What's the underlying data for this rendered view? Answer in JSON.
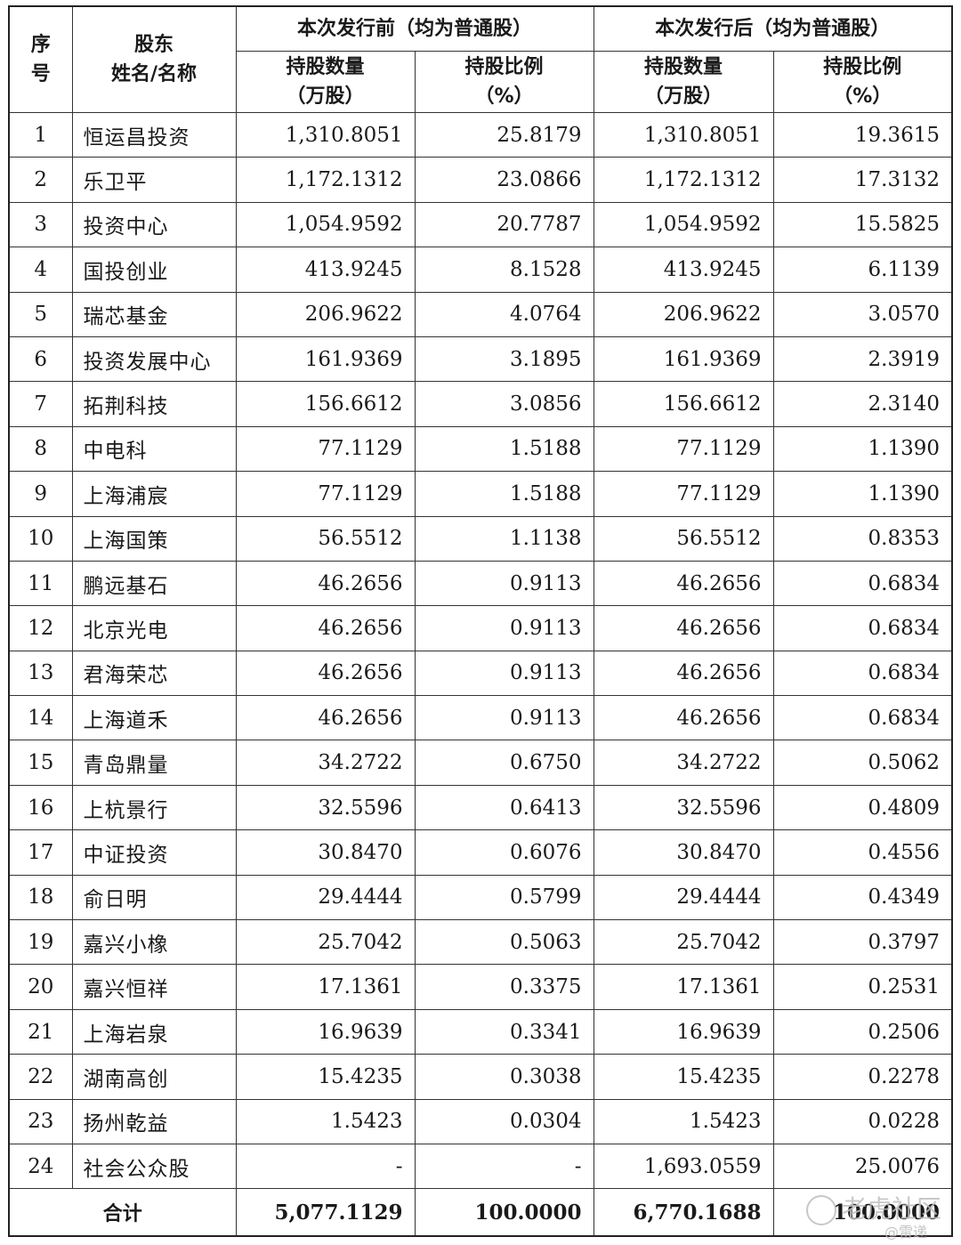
{
  "header": {
    "seq": "序\n号",
    "shareholder": "股东\n姓名/名称",
    "before_group": "本次发行前（均为普通股）",
    "after_group": "本次发行后（均为普通股）",
    "shares_label": "持股数量\n（万股）",
    "ratio_label": "持股比例\n（%）"
  },
  "rows": [
    [
      "1",
      "恒运昌投资",
      "1,310.8051",
      "25.8179",
      "1,310.8051",
      "19.3615"
    ],
    [
      "2",
      "乐卫平",
      "1,172.1312",
      "23.0866",
      "1,172.1312",
      "17.3132"
    ],
    [
      "3",
      "投资中心",
      "1,054.9592",
      "20.7787",
      "1,054.9592",
      "15.5825"
    ],
    [
      "4",
      "国投创业",
      "413.9245",
      "8.1528",
      "413.9245",
      "6.1139"
    ],
    [
      "5",
      "瑞芯基金",
      "206.9622",
      "4.0764",
      "206.9622",
      "3.0570"
    ],
    [
      "6",
      "投资发展中心",
      "161.9369",
      "3.1895",
      "161.9369",
      "2.3919"
    ],
    [
      "7",
      "拓荆科技",
      "156.6612",
      "3.0856",
      "156.6612",
      "2.3140"
    ],
    [
      "8",
      "中电科",
      "77.1129",
      "1.5188",
      "77.1129",
      "1.1390"
    ],
    [
      "9",
      "上海浦宸",
      "77.1129",
      "1.5188",
      "77.1129",
      "1.1390"
    ],
    [
      "10",
      "上海国策",
      "56.5512",
      "1.1138",
      "56.5512",
      "0.8353"
    ],
    [
      "11",
      "鹏远基石",
      "46.2656",
      "0.9113",
      "46.2656",
      "0.6834"
    ],
    [
      "12",
      "北京光电",
      "46.2656",
      "0.9113",
      "46.2656",
      "0.6834"
    ],
    [
      "13",
      "君海荣芯",
      "46.2656",
      "0.9113",
      "46.2656",
      "0.6834"
    ],
    [
      "14",
      "上海道禾",
      "46.2656",
      "0.9113",
      "46.2656",
      "0.6834"
    ],
    [
      "15",
      "青岛鼎量",
      "34.2722",
      "0.6750",
      "34.2722",
      "0.5062"
    ],
    [
      "16",
      "上杭景行",
      "32.5596",
      "0.6413",
      "32.5596",
      "0.4809"
    ],
    [
      "17",
      "中证投资",
      "30.8470",
      "0.6076",
      "30.8470",
      "0.4556"
    ],
    [
      "18",
      "俞日明",
      "29.4444",
      "0.5799",
      "29.4444",
      "0.4349"
    ],
    [
      "19",
      "嘉兴小橡",
      "25.7042",
      "0.5063",
      "25.7042",
      "0.3797"
    ],
    [
      "20",
      "嘉兴恒祥",
      "17.1361",
      "0.3375",
      "17.1361",
      "0.2531"
    ],
    [
      "21",
      "上海岩泉",
      "16.9639",
      "0.3341",
      "16.9639",
      "0.2506"
    ],
    [
      "22",
      "湖南高创",
      "15.4235",
      "0.3038",
      "15.4235",
      "0.2278"
    ],
    [
      "23",
      "扬州乾益",
      "1.5423",
      "0.0304",
      "1.5423",
      "0.0228"
    ],
    [
      "24",
      "社会公众股",
      "-",
      "-",
      "1,693.0559",
      "25.0076"
    ]
  ],
  "total": {
    "label": "合计",
    "before_shares": "5,077.1129",
    "before_ratio": "100.0000",
    "after_shares": "6,770.1688",
    "after_ratio": "100.0000"
  },
  "watermark": {
    "text": "老虎社区",
    "sub": "@雷递"
  }
}
